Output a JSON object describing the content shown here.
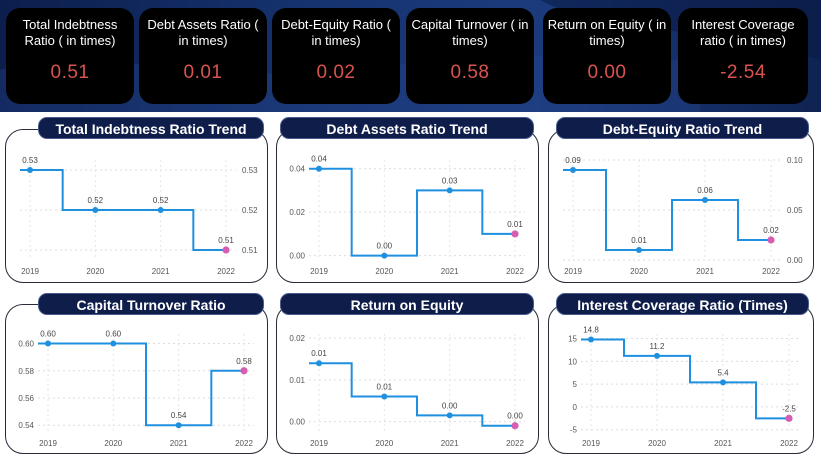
{
  "kpis": [
    {
      "title": "Total Indebtness Ratio ( in times)",
      "value": "0.51"
    },
    {
      "title": "Debt Assets Ratio ( in times)",
      "value": "0.01"
    },
    {
      "title": "Debt-Equity Ratio ( in times)",
      "value": "0.02"
    },
    {
      "title": "Capital Turnover ( in times)",
      "value": "0.58"
    },
    {
      "title": "Return on Equity ( in times)",
      "value": "0.00"
    },
    {
      "title": "Interest Coverage ratio ( in times)",
      "value": "-2.54"
    }
  ],
  "colors": {
    "banner": "#16336f",
    "kpi_bg": "#000000",
    "kpi_value": "#d9534f",
    "panel_title_bg": "#0f1d4b",
    "line": "#1f8fe0",
    "point": "#1f8fe0",
    "last_point": "#d65db1"
  },
  "chart_data": [
    {
      "type": "line",
      "title": "Total Indebtness Ratio Trend",
      "line_shape": "step",
      "x": [
        "2019",
        "2020",
        "2021",
        "2022"
      ],
      "values": [
        0.53,
        0.52,
        0.52,
        0.51
      ],
      "data_labels": [
        "0.53",
        "0.52",
        "0.52",
        "0.51"
      ],
      "y_axis_side": "right",
      "y_ticks": [
        "0.51",
        "0.52",
        "0.53"
      ],
      "ylim": [
        0.5075,
        0.5325
      ],
      "grid": true
    },
    {
      "type": "line",
      "title": "Debt Assets Ratio Trend",
      "line_shape": "step",
      "x": [
        "2019",
        "2020",
        "2021",
        "2022"
      ],
      "values": [
        0.04,
        0.0,
        0.03,
        0.01
      ],
      "data_labels": [
        "0.04",
        "0.00",
        "0.03",
        "0.01"
      ],
      "y_axis_side": "left",
      "y_ticks": [
        "0.00",
        "0.02",
        "0.04"
      ],
      "ylim": [
        -0.002,
        0.044
      ],
      "grid": true
    },
    {
      "type": "line",
      "title": "Debt-Equity Ratio Trend",
      "line_shape": "step",
      "x": [
        "2019",
        "2020",
        "2021",
        "2022"
      ],
      "values": [
        0.09,
        0.01,
        0.06,
        0.02
      ],
      "data_labels": [
        "0.09",
        "0.01",
        "0.06",
        "0.02"
      ],
      "y_axis_side": "right",
      "y_ticks": [
        "0.00",
        "0.05",
        "0.10"
      ],
      "ylim": [
        0.0,
        0.1
      ],
      "grid": true
    },
    {
      "type": "line",
      "title": "Capital Turnover Ratio",
      "line_shape": "step",
      "x": [
        "2019",
        "2020",
        "2021",
        "2022"
      ],
      "values": [
        0.6,
        0.6,
        0.54,
        0.58
      ],
      "data_labels": [
        "0.60",
        "0.60",
        "0.54",
        "0.58"
      ],
      "y_axis_side": "left",
      "y_ticks": [
        "0.54",
        "0.56",
        "0.58",
        "0.60"
      ],
      "ylim": [
        0.535,
        0.607
      ],
      "grid": true
    },
    {
      "type": "line",
      "title": "Return on Equity",
      "line_shape": "step",
      "x": [
        "2019",
        "2020",
        "2021",
        "2022"
      ],
      "values": [
        0.014,
        0.006,
        0.0015,
        -0.001
      ],
      "data_labels": [
        "0.01",
        "0.01",
        "0.00",
        "0.00"
      ],
      "y_axis_side": "left",
      "y_ticks": [
        "0.00",
        "0.01",
        "0.02"
      ],
      "ylim": [
        -0.0025,
        0.021
      ],
      "grid": true
    },
    {
      "type": "line",
      "title": "Interest Coverage Ratio (Times)",
      "line_shape": "step",
      "x": [
        "2019",
        "2020",
        "2021",
        "2022"
      ],
      "values": [
        14.8,
        11.2,
        5.4,
        -2.5
      ],
      "data_labels": [
        "14.8",
        "11.2",
        "5.4",
        "-2.5"
      ],
      "y_axis_side": "left",
      "y_ticks": [
        "-5",
        "0",
        "5",
        "10",
        "15"
      ],
      "ylim": [
        -5.5,
        16
      ],
      "grid": true
    }
  ]
}
